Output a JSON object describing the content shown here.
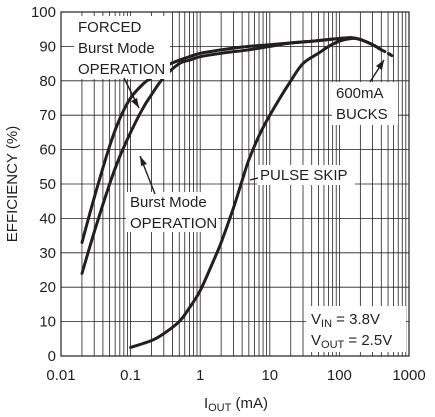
{
  "chart_data": {
    "type": "line",
    "xlabel": "I",
    "xlabel_sub": "OUT",
    "xlabel_unit": " (mA)",
    "ylabel": "EFFICIENCY (%)",
    "x_scale": "log",
    "xlim": [
      0.01,
      1000
    ],
    "ylim": [
      0,
      100
    ],
    "x_ticks": [
      {
        "value": 0.01,
        "label": "0.01"
      },
      {
        "value": 0.1,
        "label": "0.1"
      },
      {
        "value": 1,
        "label": "1"
      },
      {
        "value": 10,
        "label": "10"
      },
      {
        "value": 100,
        "label": "100"
      },
      {
        "value": 1000,
        "label": "1000"
      }
    ],
    "y_ticks": [
      {
        "value": 0,
        "label": "0"
      },
      {
        "value": 10,
        "label": "10"
      },
      {
        "value": 20,
        "label": "20"
      },
      {
        "value": 30,
        "label": "30"
      },
      {
        "value": 40,
        "label": "40"
      },
      {
        "value": 50,
        "label": "50"
      },
      {
        "value": 60,
        "label": "60"
      },
      {
        "value": 70,
        "label": "70"
      },
      {
        "value": 80,
        "label": "80"
      },
      {
        "value": 90,
        "label": "90"
      },
      {
        "value": 100,
        "label": "100"
      }
    ],
    "grid": true,
    "series": [
      {
        "name": "FORCED Burst Mode OPERATION",
        "points": [
          [
            0.02,
            33
          ],
          [
            0.03,
            46
          ],
          [
            0.05,
            61
          ],
          [
            0.07,
            69
          ],
          [
            0.1,
            75
          ],
          [
            0.15,
            79
          ],
          [
            0.2,
            81
          ],
          [
            0.3,
            84
          ],
          [
            0.5,
            86
          ],
          [
            0.7,
            87
          ],
          [
            1,
            88
          ],
          [
            2,
            89
          ],
          [
            3,
            89.5
          ],
          [
            5,
            90
          ],
          [
            10,
            90.5
          ],
          [
            20,
            91
          ],
          [
            40,
            91.5
          ],
          [
            70,
            92
          ],
          [
            100,
            92.3
          ],
          [
            150,
            92.5
          ],
          [
            200,
            92
          ],
          [
            300,
            90.5
          ],
          [
            400,
            89
          ]
        ]
      },
      {
        "name": "Burst Mode OPERATION",
        "points": [
          [
            0.02,
            24
          ],
          [
            0.03,
            36
          ],
          [
            0.05,
            50
          ],
          [
            0.07,
            58
          ],
          [
            0.1,
            65
          ],
          [
            0.15,
            72
          ],
          [
            0.2,
            76
          ],
          [
            0.3,
            81
          ],
          [
            0.5,
            85
          ],
          [
            0.7,
            86
          ],
          [
            1,
            87
          ],
          [
            2,
            88
          ],
          [
            5,
            89
          ],
          [
            10,
            90
          ],
          [
            20,
            91
          ],
          [
            40,
            91.5
          ],
          [
            70,
            92
          ],
          [
            100,
            92.3
          ],
          [
            150,
            92.5
          ],
          [
            200,
            92
          ],
          [
            300,
            90.5
          ],
          [
            400,
            89
          ]
        ]
      },
      {
        "name": "PULSE SKIP",
        "points": [
          [
            0.1,
            2.5
          ],
          [
            0.2,
            4.5
          ],
          [
            0.3,
            6.5
          ],
          [
            0.5,
            10
          ],
          [
            0.7,
            14
          ],
          [
            1,
            19
          ],
          [
            1.5,
            27
          ],
          [
            2,
            33
          ],
          [
            3,
            43
          ],
          [
            4,
            51
          ],
          [
            5,
            57
          ],
          [
            7,
            64
          ],
          [
            10,
            70
          ],
          [
            20,
            80
          ],
          [
            30,
            85
          ],
          [
            50,
            88
          ],
          [
            70,
            90
          ],
          [
            100,
            91.5
          ],
          [
            150,
            92.3
          ],
          [
            200,
            92
          ],
          [
            300,
            90.5
          ],
          [
            400,
            89
          ]
        ]
      }
    ],
    "extension_dashed": [
      [
        400,
        89
      ],
      [
        500,
        88
      ],
      [
        600,
        87
      ]
    ],
    "annotations": {
      "forced_line1": "FORCED",
      "forced_line2": "Burst Mode",
      "forced_line3": "OPERATION",
      "burst_line1": "Burst Mode",
      "burst_line2": "OPERATION",
      "pulse_skip": "PULSE SKIP",
      "bucks_line1": "600mA",
      "bucks_line2": "BUCKS",
      "vin_main": "V",
      "vin_sub": "IN",
      "vin_value": " = 3.8V",
      "vout_main": "V",
      "vout_sub": "OUT",
      "vout_value": " = 2.5V"
    }
  }
}
